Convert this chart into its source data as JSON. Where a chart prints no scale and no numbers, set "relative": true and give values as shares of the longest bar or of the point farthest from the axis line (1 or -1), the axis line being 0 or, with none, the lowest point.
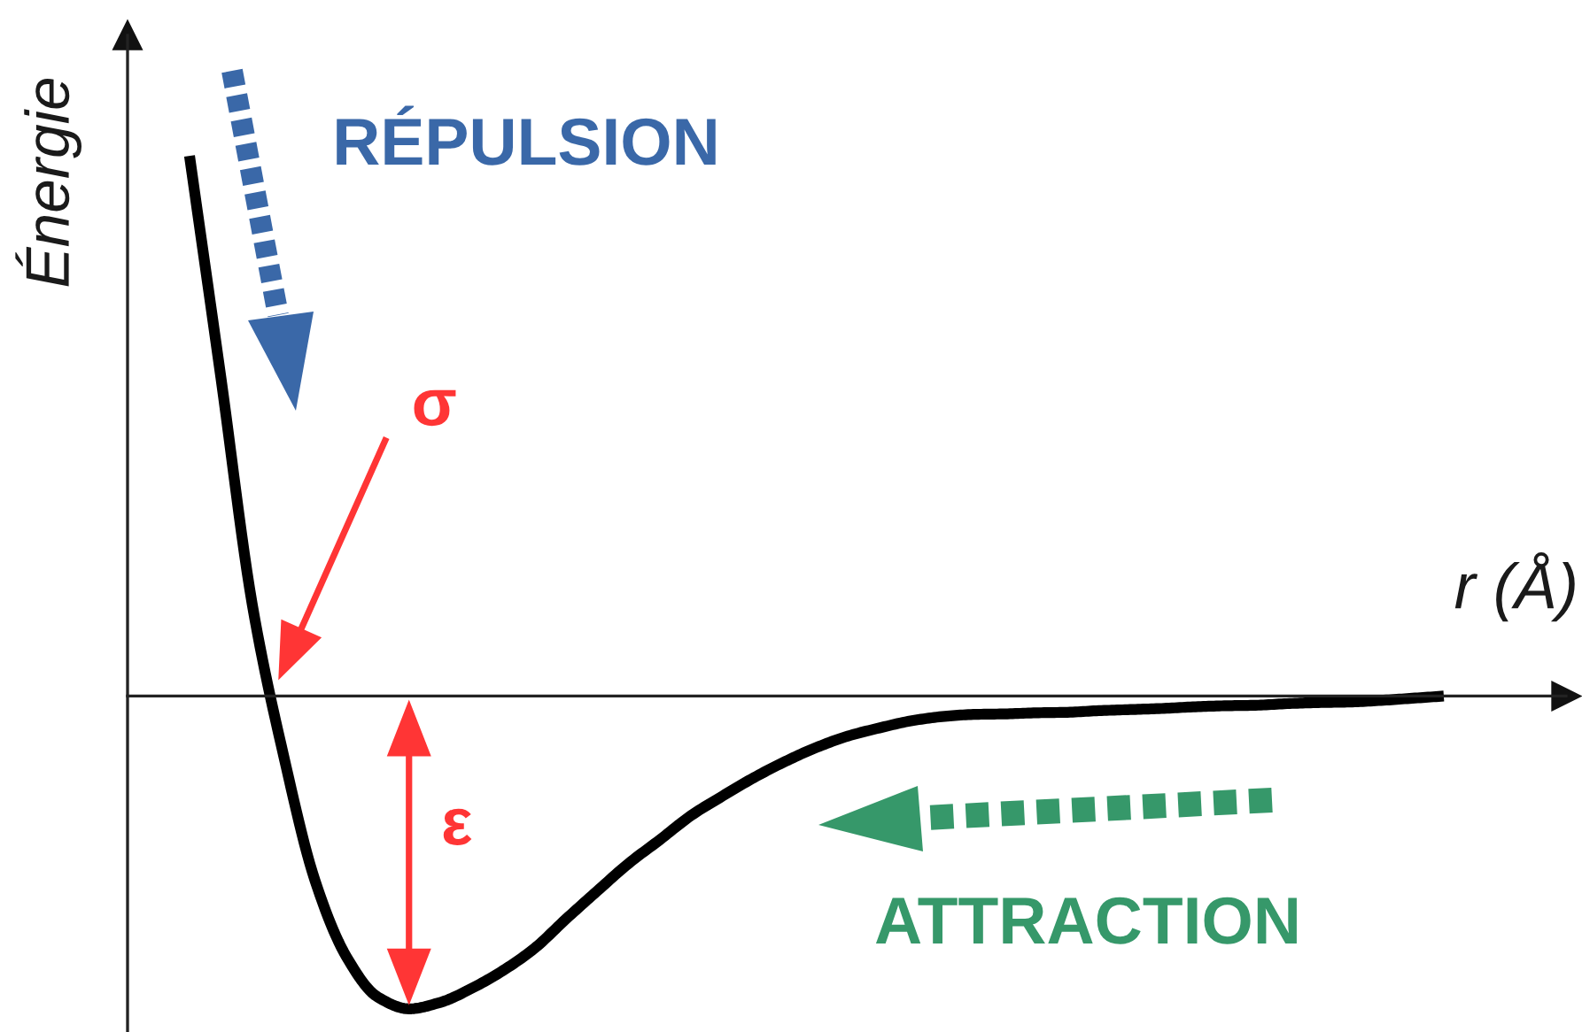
{
  "chart_data": {
    "type": "line",
    "xlabel": "r (Å)",
    "ylabel": "Énergie",
    "relative": true,
    "categories": [
      null,
      null,
      null,
      null,
      null,
      null,
      null,
      null,
      null,
      null,
      null,
      null,
      null,
      null,
      null,
      null,
      null,
      null,
      null,
      null,
      null,
      null,
      null,
      null,
      null,
      null,
      null,
      null,
      null,
      null,
      null,
      null,
      null,
      null,
      null,
      null,
      null,
      null,
      null,
      null,
      null
    ],
    "series": [
      {
        "color": "#000000",
        "values": [
          1.0,
          0.59,
          0.17,
          -0.11,
          -0.341,
          -0.482,
          -0.557,
          -0.579,
          -0.567,
          -0.541,
          -0.508,
          -0.467,
          -0.413,
          -0.361,
          -0.31,
          -0.266,
          -0.221,
          -0.185,
          -0.151,
          -0.121,
          -0.095,
          -0.074,
          -0.059,
          -0.046,
          -0.038,
          -0.034,
          -0.033,
          -0.031,
          -0.03,
          -0.027,
          -0.025,
          -0.023,
          -0.02,
          -0.018,
          -0.017,
          -0.014,
          -0.012,
          -0.011,
          -0.008,
          -0.004,
          0
        ]
      }
    ],
    "annotations": [
      "RÉPULSION",
      "σ",
      "ε",
      "ATTRACTION"
    ]
  }
}
